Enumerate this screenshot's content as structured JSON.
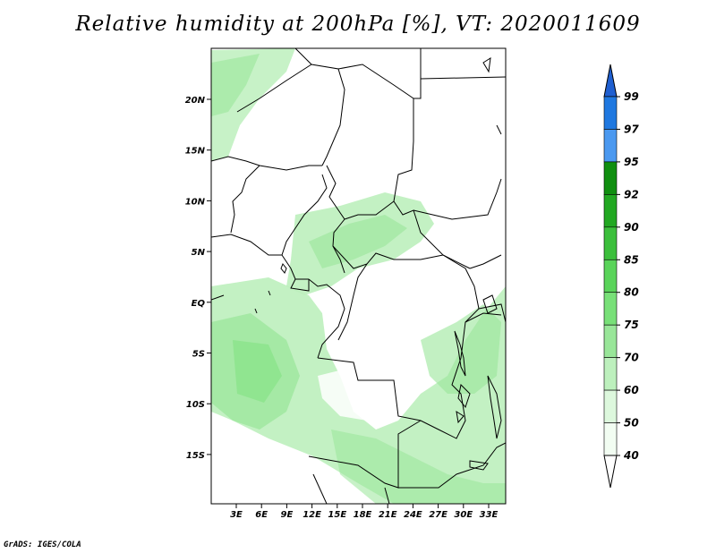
{
  "title": "Relative humidity at 200hPa [%], VT: 2020011609",
  "credit": "GrADS: IGES/COLA",
  "map": {
    "lat_labels": [
      "20N",
      "15N",
      "10N",
      "5N",
      "EQ",
      "5S",
      "10S",
      "15S"
    ],
    "lon_labels": [
      "3E",
      "6E",
      "9E",
      "12E",
      "15E",
      "18E",
      "21E",
      "24E",
      "27E",
      "30E",
      "33E"
    ]
  },
  "colorbar": {
    "levels": [
      "99",
      "97",
      "95",
      "92",
      "90",
      "85",
      "80",
      "75",
      "70",
      "60",
      "50",
      "40"
    ],
    "colors": [
      "#1f5fd0",
      "#1f78e0",
      "#4b99f0",
      "#108f10",
      "#22a822",
      "#3cbf3c",
      "#5ad45a",
      "#78e078",
      "#99e699",
      "#bdf0bd",
      "#ddf8dd",
      "#f2fdf2"
    ]
  }
}
